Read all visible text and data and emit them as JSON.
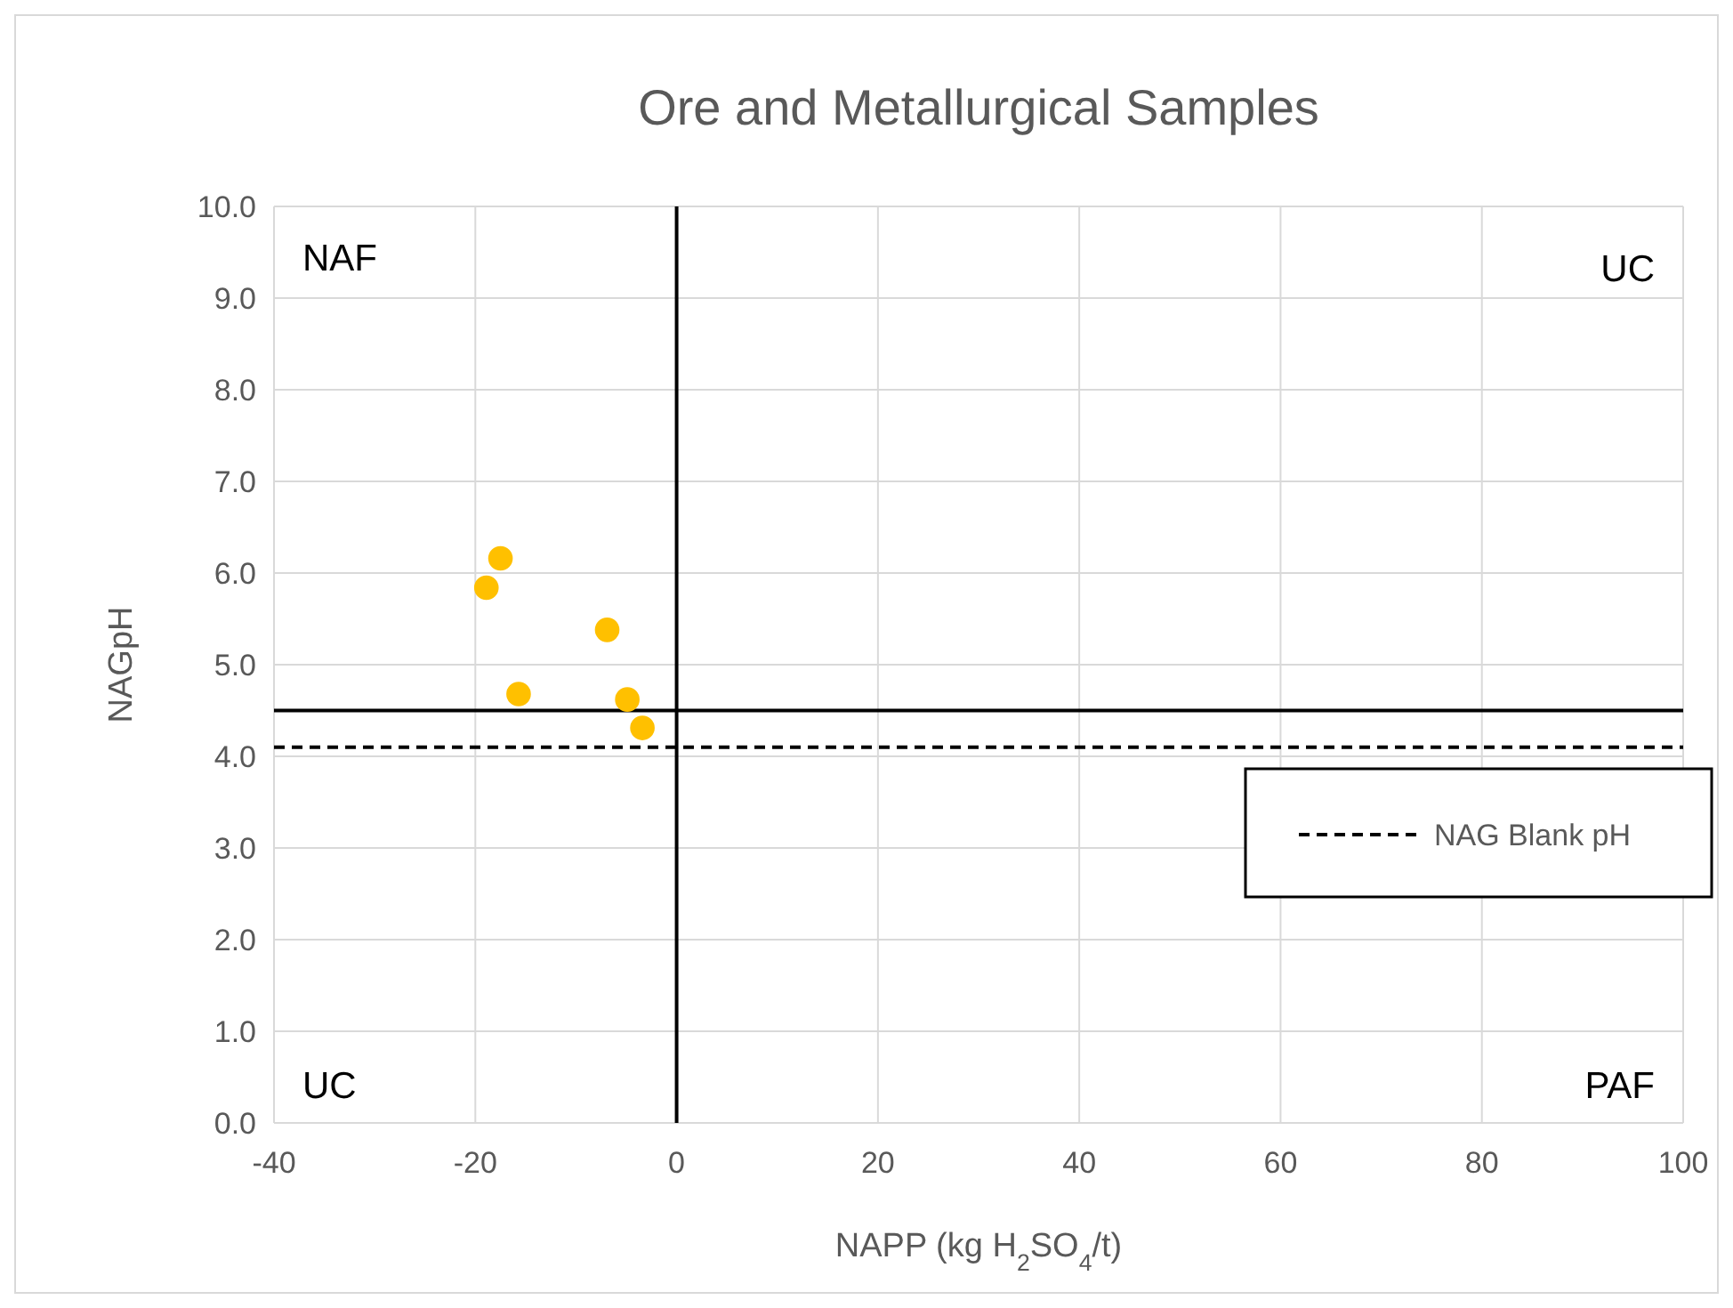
{
  "chart_data": {
    "type": "scatter",
    "title": "Ore and Metallurgical Samples",
    "xlabel": "NAPP (kg H$_{2}$SO$_{4}$/t)",
    "ylabel": "NAGpH",
    "series": [
      {
        "color": "#ffc000",
        "x": [
          -18.9,
          -17.5,
          -15.7,
          -6.9,
          -4.9,
          -3.4
        ],
        "values": [
          5.84,
          6.16,
          4.68,
          5.38,
          4.62,
          4.31
        ]
      }
    ],
    "xlim": [
      -40,
      100
    ],
    "xticks": [
      -40,
      -20,
      0,
      20,
      40,
      60,
      80,
      100
    ],
    "ylim": [
      0,
      10
    ],
    "yticks": [
      {
        "value": 0,
        "label": "0.0"
      },
      {
        "value": 1,
        "label": "1.0"
      },
      {
        "value": 2,
        "label": "2.0"
      },
      {
        "value": 3,
        "label": "3.0"
      },
      {
        "value": 4,
        "label": "4.0"
      },
      {
        "value": 5,
        "label": "5.0"
      },
      {
        "value": 6,
        "label": "6.0"
      },
      {
        "value": 7,
        "label": "7.0"
      },
      {
        "value": 8,
        "label": "8.0"
      },
      {
        "value": 9,
        "label": "9.0"
      },
      {
        "value": 10,
        "label": "10.0"
      }
    ],
    "ref_lines": [
      {
        "axis": "y",
        "value": 4.5,
        "color": "#000000",
        "line_style": "solid"
      },
      {
        "axis": "x",
        "value": 0,
        "color": "#000000",
        "line_style": "solid"
      },
      {
        "axis": "y",
        "value": 4.1,
        "label": "NAG Blank pH",
        "color": "#000000",
        "line_style": "dashed"
      }
    ],
    "annotations": [
      "NAF",
      "UC",
      "UC",
      "PAF"
    ],
    "grid": true,
    "legend": "right",
    "marker": "circle"
  }
}
